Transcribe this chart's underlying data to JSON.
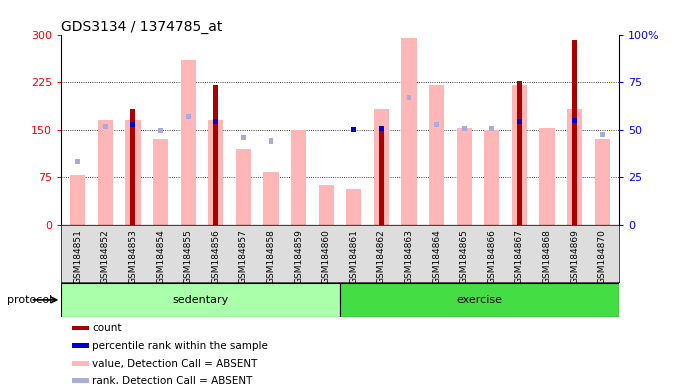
{
  "title": "GDS3134 / 1374785_at",
  "samples": [
    "GSM184851",
    "GSM184852",
    "GSM184853",
    "GSM184854",
    "GSM184855",
    "GSM184856",
    "GSM184857",
    "GSM184858",
    "GSM184859",
    "GSM184860",
    "GSM184861",
    "GSM184862",
    "GSM184863",
    "GSM184864",
    "GSM184865",
    "GSM184866",
    "GSM184867",
    "GSM184868",
    "GSM184869",
    "GSM184870"
  ],
  "value_absent": [
    78,
    165,
    165,
    135,
    260,
    165,
    120,
    83,
    150,
    62,
    57,
    183,
    295,
    220,
    153,
    150,
    220,
    153,
    183,
    135
  ],
  "rank_absent_y": [
    100,
    155,
    160,
    148,
    170,
    163,
    138,
    132,
    null,
    null,
    null,
    null,
    200,
    158,
    152,
    152,
    150,
    null,
    168,
    143
  ],
  "count": [
    null,
    null,
    183,
    null,
    null,
    220,
    null,
    null,
    null,
    null,
    null,
    152,
    null,
    null,
    null,
    null,
    226,
    null,
    291,
    null
  ],
  "percentile_y": [
    null,
    null,
    158,
    null,
    null,
    163,
    null,
    null,
    null,
    null,
    150,
    152,
    null,
    null,
    null,
    null,
    163,
    null,
    165,
    null
  ],
  "sedentary_count": 10,
  "exercise_count": 10,
  "ylim_left": [
    0,
    300
  ],
  "ylim_right": [
    0,
    100
  ],
  "yticks_left": [
    0,
    75,
    150,
    225,
    300
  ],
  "yticks_right": [
    0,
    25,
    50,
    75,
    100
  ],
  "gridlines": [
    75,
    150,
    225
  ],
  "color_value_absent": "#FFB6B6",
  "color_rank_absent": "#AAAADD",
  "color_count": "#AA0000",
  "color_percentile": "#0000CC",
  "color_sedentary_light": "#CCFFCC",
  "color_sedentary_dark": "#55DD55",
  "color_exercise_light": "#88EE88",
  "color_exercise_dark": "#33CC33",
  "protocol_label": "protocol",
  "sedentary_label": "sedentary",
  "exercise_label": "exercise",
  "bg_gray": "#DDDDDD",
  "legend": [
    {
      "label": "count",
      "color": "#AA0000"
    },
    {
      "label": "percentile rank within the sample",
      "color": "#0000CC"
    },
    {
      "label": "value, Detection Call = ABSENT",
      "color": "#FFB6B6"
    },
    {
      "label": "rank, Detection Call = ABSENT",
      "color": "#AAAADD"
    }
  ]
}
